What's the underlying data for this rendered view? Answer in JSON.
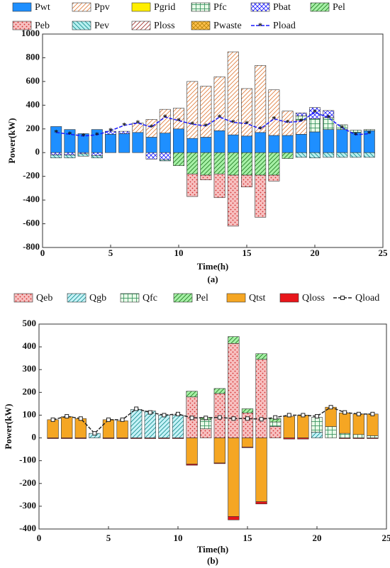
{
  "chart_data": [
    {
      "type": "bar",
      "stacked": true,
      "caption": "(a)",
      "xlabel": "Time(h)",
      "ylabel": "Power(kW)",
      "x": [
        1,
        2,
        3,
        4,
        5,
        6,
        7,
        8,
        9,
        10,
        11,
        12,
        13,
        14,
        15,
        16,
        17,
        18,
        19,
        20,
        21,
        22,
        23,
        24
      ],
      "xlim": [
        0,
        25
      ],
      "xticks": [
        0,
        5,
        10,
        15,
        20,
        25
      ],
      "ylim": [
        -800,
        1000
      ],
      "yticks": [
        -800,
        -600,
        -400,
        -200,
        0,
        200,
        400,
        600,
        800,
        1000
      ],
      "series": [
        {
          "name": "Pwt",
          "color": "#1e8fff",
          "background": "#1e8fff",
          "pattern": "solid",
          "values": [
            220,
            195,
            160,
            195,
            155,
            160,
            170,
            130,
            165,
            200,
            120,
            130,
            185,
            150,
            140,
            170,
            145,
            145,
            155,
            175,
            195,
            195,
            170,
            185
          ]
        },
        {
          "name": "Ppv",
          "color": "#e07b39",
          "background": "#ffffff",
          "pattern": "diag",
          "values": [
            0,
            0,
            0,
            0,
            0,
            0,
            80,
            150,
            200,
            175,
            480,
            430,
            455,
            700,
            400,
            565,
            385,
            205,
            120,
            0,
            0,
            0,
            0,
            0
          ]
        },
        {
          "name": "Pgrid",
          "color": "#ffee00",
          "background": "#ffee00",
          "pattern": "solid",
          "values": [
            0,
            0,
            0,
            0,
            0,
            0,
            0,
            0,
            0,
            0,
            0,
            0,
            0,
            0,
            0,
            0,
            0,
            0,
            0,
            0,
            0,
            0,
            0,
            0
          ]
        },
        {
          "name": "Pfc",
          "color": "#2e8b57",
          "background": "#e8fbe8",
          "pattern": "grid",
          "values": [
            0,
            0,
            0,
            0,
            0,
            0,
            0,
            0,
            0,
            0,
            0,
            0,
            0,
            0,
            0,
            0,
            0,
            0,
            35,
            110,
            100,
            40,
            20,
            10
          ]
        },
        {
          "name": "Pbat",
          "color": "#1a1aff",
          "background": "#ffffff",
          "pattern": "cross",
          "values": [
            -20,
            -20,
            -10,
            -25,
            25,
            20,
            0,
            -55,
            -60,
            0,
            0,
            0,
            0,
            0,
            0,
            0,
            0,
            0,
            25,
            95,
            60,
            0,
            0,
            0
          ]
        },
        {
          "name": "Pel",
          "color": "#1f7a1f",
          "background": "#a6f0a6",
          "pattern": "diag",
          "values": [
            0,
            0,
            0,
            0,
            0,
            0,
            0,
            0,
            0,
            -110,
            -180,
            -190,
            -180,
            -190,
            -190,
            -190,
            -190,
            -50,
            0,
            0,
            0,
            0,
            0,
            0
          ]
        },
        {
          "name": "Peb",
          "color": "#d22b2b",
          "background": "#f7c0c0",
          "pattern": "dots",
          "values": [
            0,
            0,
            0,
            0,
            0,
            0,
            0,
            0,
            0,
            0,
            -190,
            -40,
            -200,
            -430,
            -100,
            -355,
            -50,
            0,
            0,
            0,
            0,
            0,
            0,
            0
          ]
        },
        {
          "name": "Pev",
          "color": "#138c8c",
          "background": "#b8f0f0",
          "pattern": "back",
          "values": [
            -25,
            -25,
            -20,
            -20,
            0,
            0,
            0,
            0,
            -10,
            0,
            0,
            0,
            0,
            0,
            0,
            0,
            0,
            0,
            -40,
            -45,
            -40,
            -40,
            -40,
            -40
          ]
        },
        {
          "name": "Ploss",
          "color": "#a0302a",
          "background": "#ffffff",
          "pattern": "diag",
          "values": [
            0,
            0,
            0,
            0,
            0,
            0,
            0,
            0,
            0,
            0,
            0,
            0,
            0,
            0,
            0,
            0,
            0,
            0,
            0,
            0,
            0,
            0,
            0,
            0
          ]
        },
        {
          "name": "Pwaste",
          "color": "#b8860b",
          "background": "#ffc04d",
          "pattern": "cross",
          "values": [
            0,
            0,
            0,
            0,
            0,
            0,
            0,
            0,
            0,
            0,
            0,
            0,
            0,
            0,
            0,
            0,
            0,
            0,
            0,
            0,
            0,
            0,
            0,
            0
          ]
        }
      ],
      "line": {
        "name": "Pload",
        "color": "#1a1aff",
        "marker": "star",
        "values": [
          170,
          155,
          140,
          150,
          185,
          230,
          250,
          215,
          300,
          270,
          240,
          225,
          300,
          255,
          245,
          200,
          285,
          255,
          265,
          340,
          295,
          210,
          150,
          160
        ]
      }
    },
    {
      "type": "bar",
      "stacked": true,
      "caption": "(b)",
      "xlabel": "Time(h)",
      "ylabel": "Power(kW)",
      "x": [
        1,
        2,
        3,
        4,
        5,
        6,
        7,
        8,
        9,
        10,
        11,
        12,
        13,
        14,
        15,
        16,
        17,
        18,
        19,
        20,
        21,
        22,
        23,
        24
      ],
      "xlim": [
        0,
        25
      ],
      "xticks": [
        0,
        5,
        10,
        15,
        20,
        25
      ],
      "ylim": [
        -400,
        500
      ],
      "yticks": [
        -400,
        -300,
        -200,
        -100,
        0,
        100,
        200,
        300,
        400,
        500
      ],
      "series": [
        {
          "name": "Qeb",
          "color": "#d22b2b",
          "background": "#f7c0c0",
          "pattern": "dots",
          "values": [
            0,
            0,
            0,
            0,
            0,
            0,
            0,
            0,
            0,
            0,
            180,
            40,
            195,
            415,
            110,
            345,
            50,
            0,
            0,
            0,
            0,
            0,
            0,
            0
          ]
        },
        {
          "name": "Qgb",
          "color": "#138c8c",
          "background": "#c6f2f7",
          "pattern": "diag",
          "values": [
            0,
            0,
            0,
            20,
            0,
            0,
            125,
            118,
            100,
            100,
            0,
            0,
            0,
            0,
            0,
            0,
            0,
            0,
            0,
            25,
            0,
            0,
            0,
            0
          ]
        },
        {
          "name": "Qfc",
          "color": "#2e8b57",
          "background": "#e8fbe8",
          "pattern": "grid",
          "values": [
            0,
            0,
            0,
            0,
            0,
            0,
            0,
            0,
            0,
            0,
            0,
            40,
            0,
            0,
            0,
            0,
            20,
            0,
            0,
            65,
            50,
            20,
            15,
            10
          ]
        },
        {
          "name": "Pel",
          "color": "#1f7a1f",
          "background": "#a6f0a6",
          "pattern": "diag",
          "values": [
            0,
            0,
            0,
            0,
            0,
            0,
            0,
            0,
            0,
            0,
            25,
            10,
            22,
            30,
            18,
            25,
            15,
            0,
            0,
            0,
            0,
            0,
            0,
            0
          ]
        },
        {
          "name": "Qtst",
          "color": "#f5a623",
          "background": "#f5a623",
          "pattern": "solid",
          "values": [
            80,
            93,
            85,
            0,
            80,
            75,
            0,
            0,
            0,
            0,
            -115,
            0,
            -110,
            -345,
            -40,
            -280,
            0,
            95,
            100,
            0,
            85,
            90,
            90,
            95
          ]
        },
        {
          "name": "Qloss",
          "color": "#e8161b",
          "background": "#e8161b",
          "pattern": "solid",
          "values": [
            -3,
            -3,
            -3,
            0,
            -3,
            -3,
            -3,
            -3,
            -3,
            -3,
            -5,
            0,
            -3,
            -15,
            -3,
            -10,
            0,
            -5,
            -5,
            0,
            0,
            -3,
            -3,
            -3
          ]
        }
      ],
      "line": {
        "name": "Qload",
        "color": "#222222",
        "marker": "square",
        "values": [
          80,
          95,
          85,
          20,
          80,
          80,
          128,
          112,
          100,
          105,
          88,
          88,
          90,
          85,
          85,
          82,
          90,
          100,
          100,
          95,
          135,
          112,
          105,
          105
        ]
      }
    }
  ]
}
